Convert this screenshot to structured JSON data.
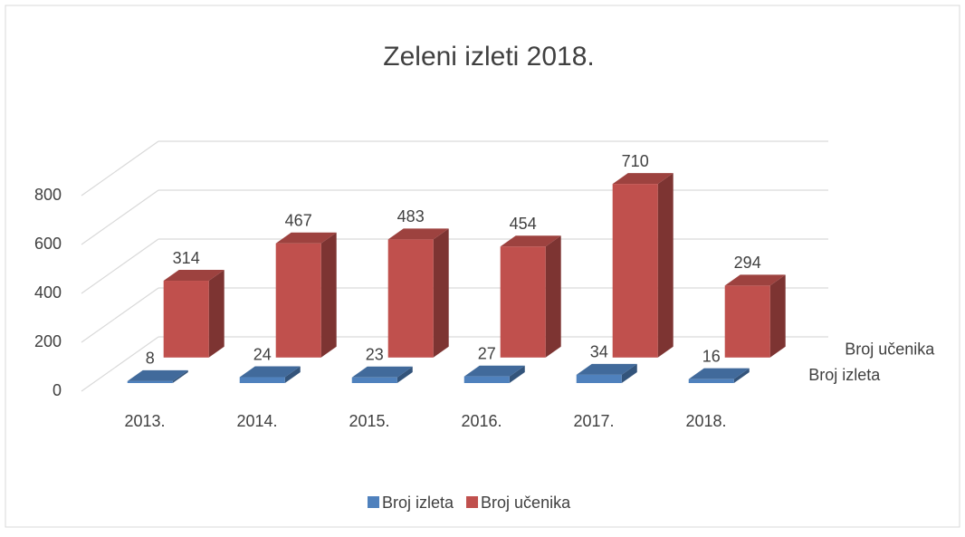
{
  "chart_data": {
    "type": "bar3d",
    "title": "Zeleni izleti 2018.",
    "categories": [
      "2013.",
      "2014.",
      "2015.",
      "2016.",
      "2017.",
      "2018."
    ],
    "series": [
      {
        "name": "Broj izleta",
        "color": "#4f81bd",
        "values": [
          8,
          24,
          23,
          27,
          34,
          16
        ]
      },
      {
        "name": "Broj učenika",
        "color": "#c0504d",
        "values": [
          314,
          467,
          483,
          454,
          710,
          294
        ]
      }
    ],
    "ylim": [
      0,
      800
    ],
    "yticks": [
      0,
      200,
      400,
      600,
      800
    ],
    "grid": true,
    "legend": "bottom"
  }
}
